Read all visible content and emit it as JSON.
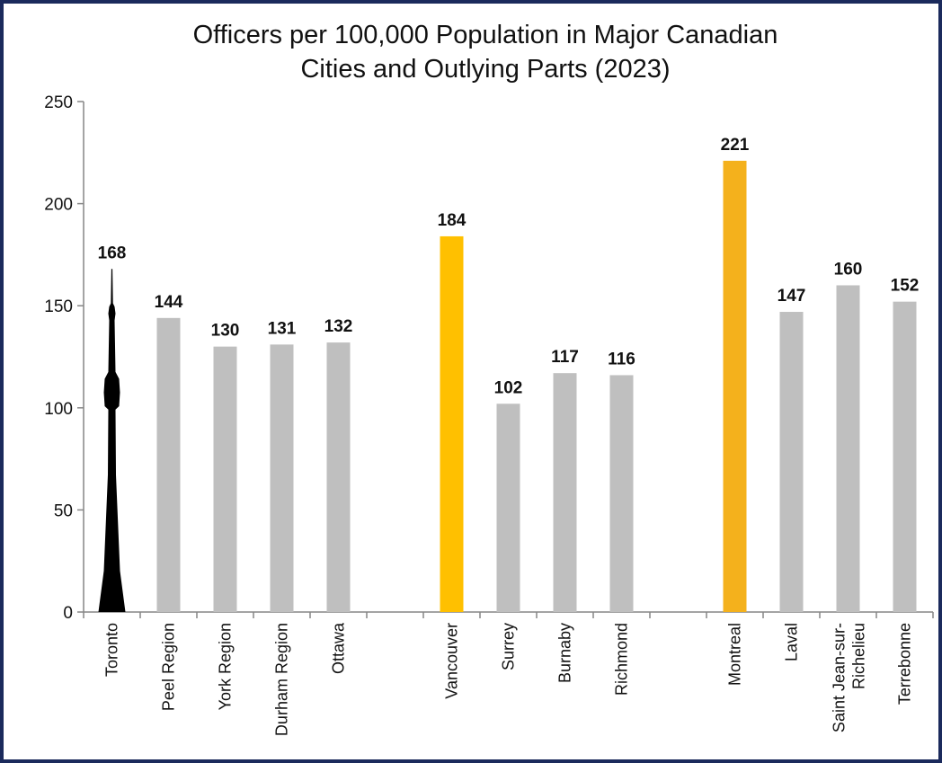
{
  "chart_data": {
    "type": "bar",
    "title": [
      "Officers per 100,000 Population in Major Canadian",
      "Cities and Outlying Parts (2023)"
    ],
    "categories": [
      "Toronto",
      "Peel Region",
      "York Region",
      "Durham Region",
      "Ottawa",
      null,
      "Vancouver",
      "Surrey",
      "Burnaby",
      "Richmond",
      null,
      "Montreal",
      "Laval",
      "Saint Jean-sur-Richelieu",
      "Terrebonne"
    ],
    "values": [
      168,
      144,
      130,
      131,
      132,
      null,
      184,
      102,
      117,
      116,
      null,
      221,
      147,
      160,
      152
    ],
    "colors": [
      "#000000",
      "#bfbfbf",
      "#bfbfbf",
      "#bfbfbf",
      "#bfbfbf",
      null,
      "#ffc000",
      "#bfbfbf",
      "#bfbfbf",
      "#bfbfbf",
      null,
      "#f4b11c",
      "#bfbfbf",
      "#bfbfbf",
      "#bfbfbf"
    ],
    "ylim": [
      0,
      250
    ],
    "yticks": [
      0,
      50,
      100,
      150,
      200,
      250
    ],
    "grid": false
  }
}
